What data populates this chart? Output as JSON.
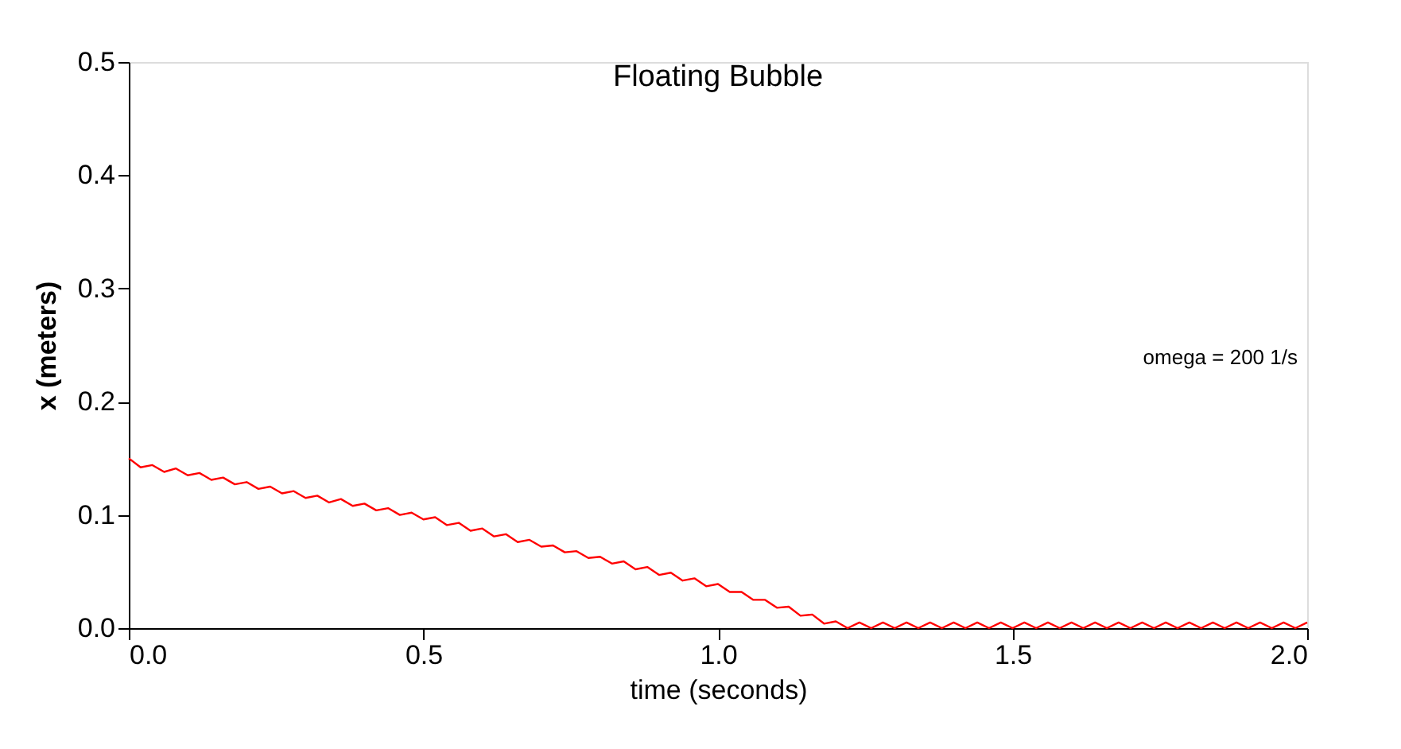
{
  "chart_data": {
    "type": "line",
    "title": "Floating Bubble",
    "xlabel": "time (seconds)",
    "ylabel": "x (meters)",
    "annotations": [
      "omega = 200 1/s"
    ],
    "xlim": [
      0,
      2.0
    ],
    "ylim": [
      0,
      0.5
    ],
    "xticks": [
      {
        "value": 0,
        "label": "0.0"
      },
      0.5,
      {
        "value": 1,
        "label": "1.0"
      },
      1.5,
      {
        "value": 2,
        "label": "2.0"
      }
    ],
    "yticks": [
      {
        "value": 0,
        "label": "0.0"
      },
      0.1,
      0.2,
      0.3,
      0.4,
      0.5
    ],
    "grid": false,
    "marker": "none",
    "line_style": "solid",
    "series": [
      {
        "color": "#ff0000",
        "x": [
          0,
          0.02,
          0.04,
          0.06,
          0.08,
          0.1,
          0.12,
          0.14,
          0.16,
          0.18,
          0.2,
          0.22,
          0.24,
          0.26,
          0.28,
          0.3,
          0.32,
          0.34,
          0.36,
          0.38,
          0.4,
          0.42,
          0.44,
          0.46,
          0.48,
          0.5,
          0.52,
          0.54,
          0.56,
          0.58,
          0.6,
          0.62,
          0.64,
          0.66,
          0.68,
          0.7,
          0.72,
          0.74,
          0.76,
          0.78,
          0.8,
          0.82,
          0.84,
          0.86,
          0.88,
          0.9,
          0.92,
          0.94,
          0.96,
          0.98,
          1.0,
          1.02,
          1.04,
          1.06,
          1.08,
          1.1,
          1.12,
          1.14,
          1.16,
          1.18,
          1.2,
          1.22,
          1.24,
          1.26,
          1.28,
          1.3,
          1.32,
          1.34,
          1.36,
          1.38,
          1.4,
          1.42,
          1.44,
          1.46,
          1.48,
          1.5,
          1.52,
          1.54,
          1.56,
          1.58,
          1.6,
          1.62,
          1.64,
          1.66,
          1.68,
          1.7,
          1.72,
          1.74,
          1.76,
          1.78,
          1.8,
          1.82,
          1.84,
          1.86,
          1.88,
          1.9,
          1.92,
          1.94,
          1.96,
          1.98,
          2.0
        ],
        "values": [
          0.15,
          0.142,
          0.144,
          0.138,
          0.141,
          0.135,
          0.137,
          0.131,
          0.133,
          0.127,
          0.129,
          0.123,
          0.125,
          0.119,
          0.121,
          0.115,
          0.117,
          0.111,
          0.114,
          0.108,
          0.11,
          0.104,
          0.106,
          0.1,
          0.102,
          0.096,
          0.098,
          0.091,
          0.093,
          0.086,
          0.088,
          0.081,
          0.083,
          0.076,
          0.078,
          0.072,
          0.073,
          0.067,
          0.068,
          0.062,
          0.063,
          0.057,
          0.059,
          0.052,
          0.054,
          0.047,
          0.049,
          0.042,
          0.044,
          0.037,
          0.039,
          0.032,
          0.032,
          0.025,
          0.025,
          0.018,
          0.019,
          0.011,
          0.012,
          0.004,
          0.006,
          0.0,
          0.005,
          0.0,
          0.005,
          0.0,
          0.005,
          0.0,
          0.005,
          0.0,
          0.005,
          0.0,
          0.005,
          0.0,
          0.005,
          0.0,
          0.005,
          0.0,
          0.005,
          0.0,
          0.005,
          0.0,
          0.005,
          0.0,
          0.005,
          0.0,
          0.005,
          0.0,
          0.005,
          0.0,
          0.005,
          0.0,
          0.005,
          0.0,
          0.005,
          0.0,
          0.005,
          0.0,
          0.005,
          0.0,
          0.005
        ]
      }
    ]
  }
}
